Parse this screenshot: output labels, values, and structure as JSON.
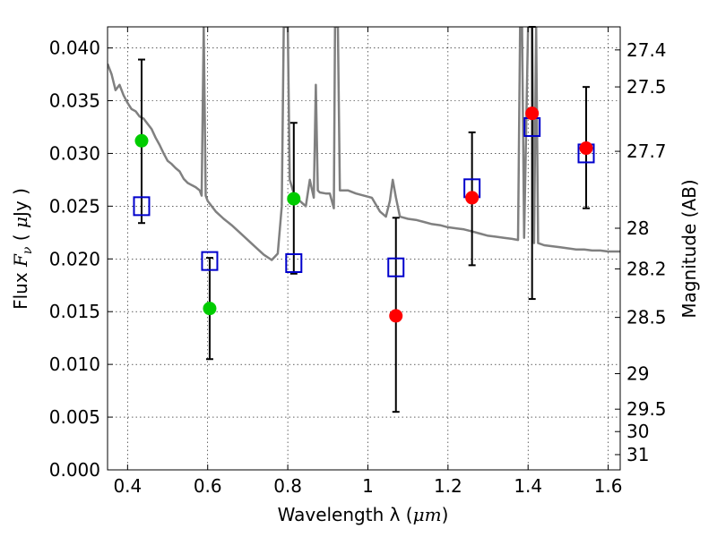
{
  "chart_data": {
    "type": "scatter",
    "title": "",
    "xlabel_prefix": "Wavelength  λ (",
    "xlabel_unit": "μm",
    "xlabel_suffix": ")",
    "ylabel_prefix": "Flux  ",
    "ylabel_symbol": "F",
    "ylabel_sub": "ν",
    "ylabel_unit_open": "  ( ",
    "ylabel_unit_mu": "μ",
    "ylabel_unit_rest": "Jy )",
    "y2label": "Magnitude (AB)",
    "xlim": [
      0.35,
      1.63
    ],
    "ylim": [
      0,
      0.042
    ],
    "grid": true,
    "x_ticks": [
      {
        "value": 0.4,
        "label": "0.4"
      },
      {
        "value": 0.6,
        "label": "0.6"
      },
      {
        "value": 0.8,
        "label": "0.8"
      },
      {
        "value": 1.0,
        "label": "1"
      },
      {
        "value": 1.2,
        "label": "1.2"
      },
      {
        "value": 1.4,
        "label": "1.4"
      },
      {
        "value": 1.6,
        "label": "1.6"
      }
    ],
    "y_ticks": [
      {
        "value": 0.0,
        "label": "0.000"
      },
      {
        "value": 0.005,
        "label": "0.005"
      },
      {
        "value": 0.01,
        "label": "0.010"
      },
      {
        "value": 0.015,
        "label": "0.015"
      },
      {
        "value": 0.02,
        "label": "0.020"
      },
      {
        "value": 0.025,
        "label": "0.025"
      },
      {
        "value": 0.03,
        "label": "0.030"
      },
      {
        "value": 0.035,
        "label": "0.035"
      },
      {
        "value": 0.04,
        "label": "0.040"
      }
    ],
    "mag_ticks": [
      "27.4",
      "27.5",
      "27.7",
      "28",
      "28.2",
      "28.5",
      "29",
      "29.5",
      "30",
      "31"
    ],
    "model_sed": {
      "color": "#808080",
      "points": [
        [
          0.35,
          0.0385
        ],
        [
          0.36,
          0.0375
        ],
        [
          0.37,
          0.036
        ],
        [
          0.38,
          0.0365
        ],
        [
          0.39,
          0.0355
        ],
        [
          0.4,
          0.0348
        ],
        [
          0.41,
          0.0342
        ],
        [
          0.42,
          0.034
        ],
        [
          0.43,
          0.0335
        ],
        [
          0.44,
          0.0333
        ],
        [
          0.45,
          0.0328
        ],
        [
          0.46,
          0.0323
        ],
        [
          0.47,
          0.0315
        ],
        [
          0.48,
          0.0308
        ],
        [
          0.49,
          0.03
        ],
        [
          0.5,
          0.0293
        ],
        [
          0.51,
          0.029
        ],
        [
          0.52,
          0.0286
        ],
        [
          0.53,
          0.0283
        ],
        [
          0.54,
          0.0276
        ],
        [
          0.55,
          0.0272
        ],
        [
          0.56,
          0.027
        ],
        [
          0.57,
          0.0268
        ],
        [
          0.58,
          0.0265
        ],
        [
          0.585,
          0.026
        ],
        [
          0.59,
          0.042
        ],
        [
          0.595,
          0.026
        ],
        [
          0.6,
          0.0255
        ],
        [
          0.62,
          0.0245
        ],
        [
          0.64,
          0.0238
        ],
        [
          0.66,
          0.0232
        ],
        [
          0.68,
          0.0225
        ],
        [
          0.7,
          0.0218
        ],
        [
          0.72,
          0.0211
        ],
        [
          0.74,
          0.0204
        ],
        [
          0.76,
          0.0199
        ],
        [
          0.775,
          0.0205
        ],
        [
          0.785,
          0.025
        ],
        [
          0.79,
          0.042
        ],
        [
          0.8,
          0.042
        ],
        [
          0.805,
          0.0275
        ],
        [
          0.815,
          0.0262
        ],
        [
          0.83,
          0.0255
        ],
        [
          0.845,
          0.025
        ],
        [
          0.855,
          0.0275
        ],
        [
          0.865,
          0.0258
        ],
        [
          0.87,
          0.0365
        ],
        [
          0.875,
          0.0265
        ],
        [
          0.88,
          0.0263
        ],
        [
          0.895,
          0.0262
        ],
        [
          0.905,
          0.0262
        ],
        [
          0.915,
          0.0248
        ],
        [
          0.918,
          0.042
        ],
        [
          0.925,
          0.042
        ],
        [
          0.93,
          0.0265
        ],
        [
          0.95,
          0.0265
        ],
        [
          0.97,
          0.0262
        ],
        [
          0.99,
          0.026
        ],
        [
          1.01,
          0.0258
        ],
        [
          1.03,
          0.0245
        ],
        [
          1.045,
          0.024
        ],
        [
          1.055,
          0.0255
        ],
        [
          1.062,
          0.0275
        ],
        [
          1.07,
          0.0258
        ],
        [
          1.08,
          0.024
        ],
        [
          1.1,
          0.0238
        ],
        [
          1.12,
          0.0237
        ],
        [
          1.14,
          0.0235
        ],
        [
          1.16,
          0.0233
        ],
        [
          1.18,
          0.0232
        ],
        [
          1.2,
          0.023
        ],
        [
          1.22,
          0.0229
        ],
        [
          1.24,
          0.0228
        ],
        [
          1.26,
          0.0226
        ],
        [
          1.28,
          0.0224
        ],
        [
          1.3,
          0.0222
        ],
        [
          1.32,
          0.0221
        ],
        [
          1.34,
          0.022
        ],
        [
          1.36,
          0.0219
        ],
        [
          1.375,
          0.0218
        ],
        [
          1.38,
          0.042
        ],
        [
          1.385,
          0.042
        ],
        [
          1.39,
          0.022
        ],
        [
          1.4,
          0.042
        ],
        [
          1.41,
          0.042
        ],
        [
          1.415,
          0.0215
        ],
        [
          1.42,
          0.042
        ],
        [
          1.425,
          0.0215
        ],
        [
          1.44,
          0.0213
        ],
        [
          1.46,
          0.0212
        ],
        [
          1.48,
          0.0211
        ],
        [
          1.5,
          0.021
        ],
        [
          1.52,
          0.0209
        ],
        [
          1.54,
          0.0209
        ],
        [
          1.56,
          0.0208
        ],
        [
          1.58,
          0.0208
        ],
        [
          1.6,
          0.0207
        ],
        [
          1.63,
          0.0207
        ]
      ]
    },
    "model_fluxes": {
      "marker": "open-square",
      "color": "#0000cc",
      "points": [
        {
          "x": 0.435,
          "y": 0.025
        },
        {
          "x": 0.605,
          "y": 0.0198
        },
        {
          "x": 0.815,
          "y": 0.0196
        },
        {
          "x": 1.07,
          "y": 0.0192
        },
        {
          "x": 1.26,
          "y": 0.0267
        },
        {
          "x": 1.41,
          "y": 0.0325
        },
        {
          "x": 1.545,
          "y": 0.03
        }
      ]
    },
    "observed_optical": {
      "marker": "filled-circle",
      "color": "#00cc00",
      "points": [
        {
          "x": 0.435,
          "y": 0.0312,
          "yerr_low": 0.0234,
          "yerr_high": 0.0389
        },
        {
          "x": 0.605,
          "y": 0.0153,
          "yerr_low": 0.0105,
          "yerr_high": 0.0201
        },
        {
          "x": 0.815,
          "y": 0.0257,
          "yerr_low": 0.0186,
          "yerr_high": 0.0329
        }
      ]
    },
    "observed_nir": {
      "marker": "filled-circle",
      "color": "#ff0000",
      "points": [
        {
          "x": 1.07,
          "y": 0.0146,
          "yerr_low": 0.0055,
          "yerr_high": 0.0239
        },
        {
          "x": 1.26,
          "y": 0.0258,
          "yerr_low": 0.0194,
          "yerr_high": 0.032
        },
        {
          "x": 1.41,
          "y": 0.0338,
          "yerr_low": 0.0162,
          "yerr_high": 0.042
        },
        {
          "x": 1.545,
          "y": 0.0305,
          "yerr_low": 0.0248,
          "yerr_high": 0.0363
        }
      ]
    }
  }
}
